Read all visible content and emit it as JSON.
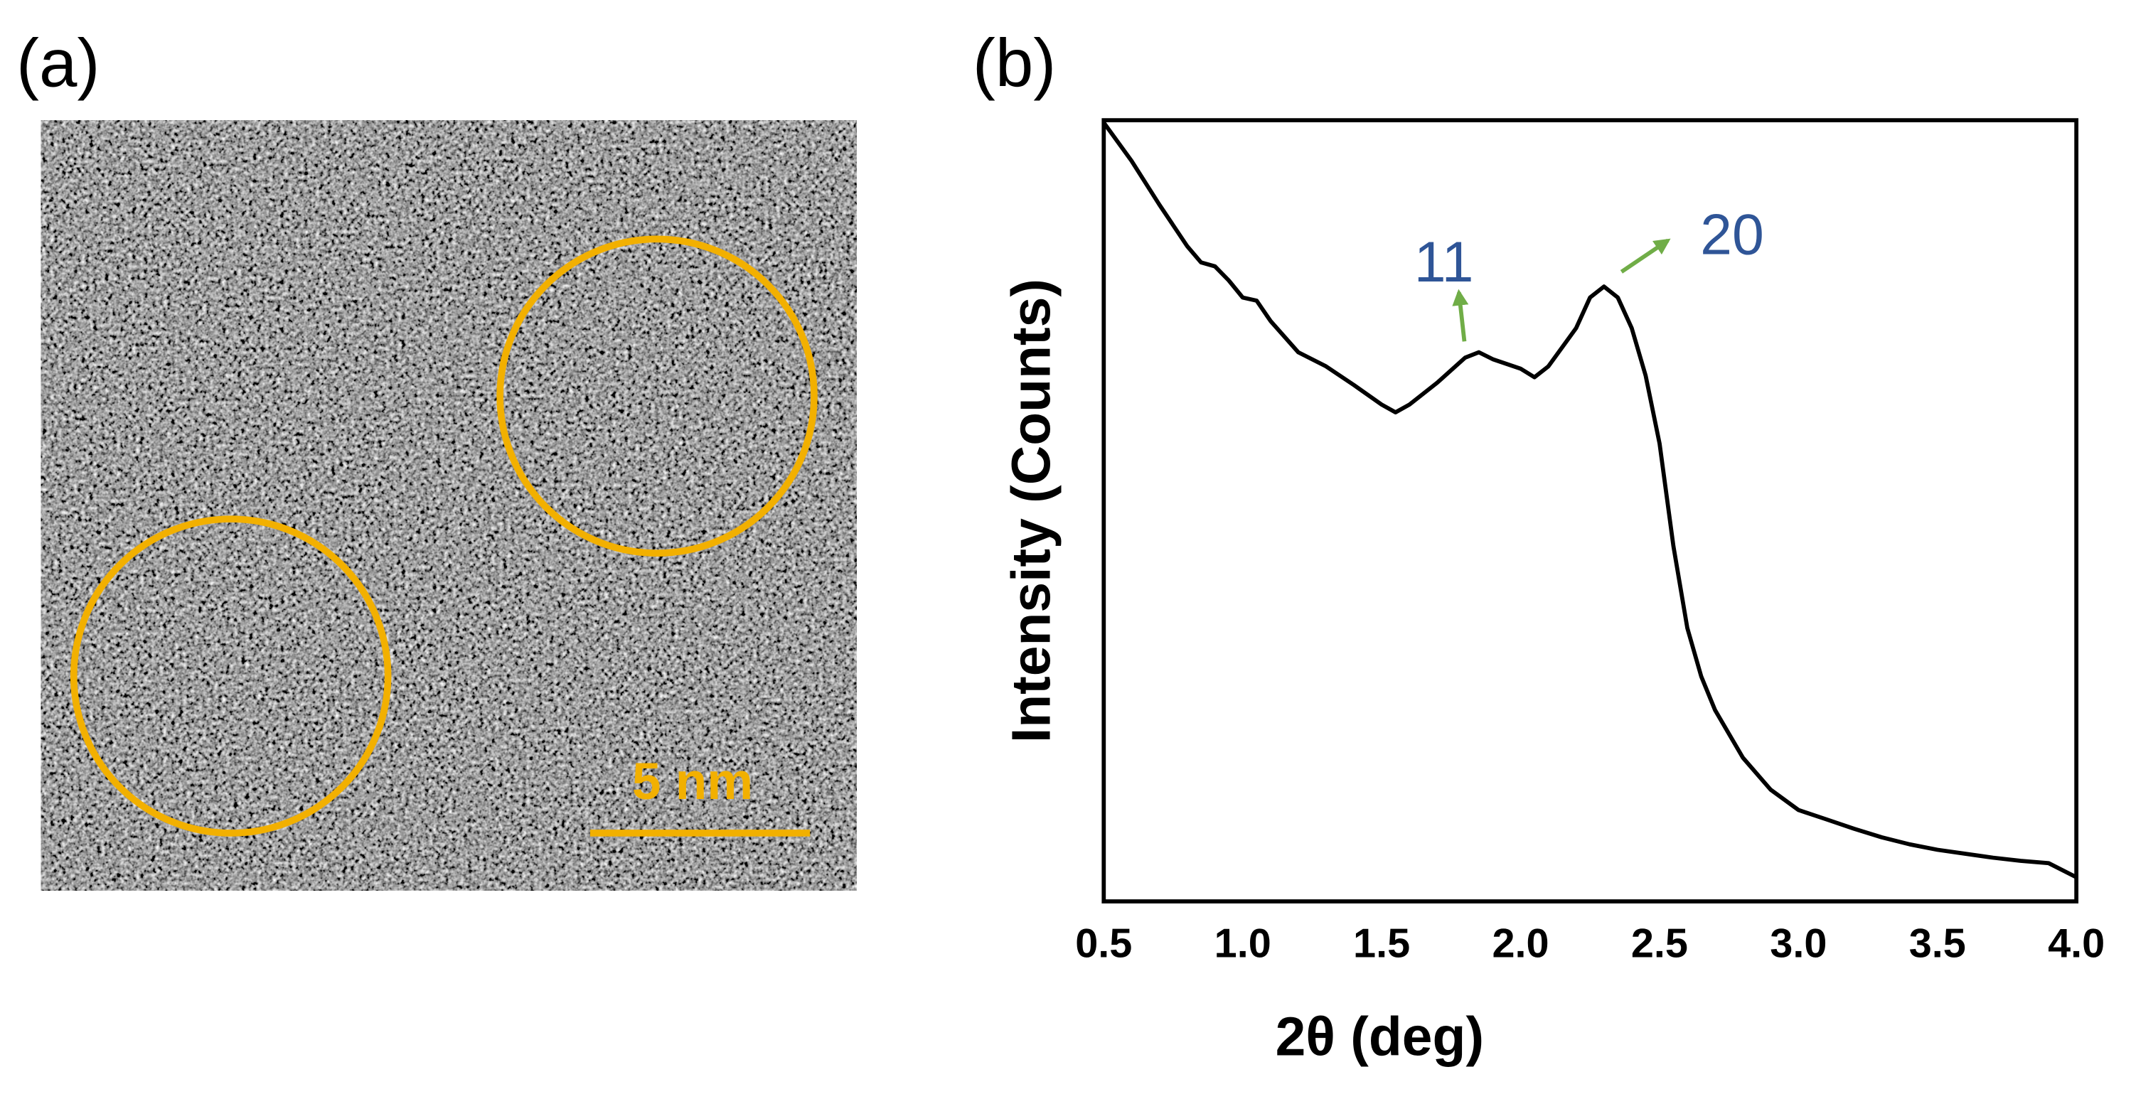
{
  "panel_a": {
    "label": "(a)",
    "scale_bar": "5 nm"
  },
  "chart_data": {
    "type": "line",
    "panel_label": "(b)",
    "x_label": "2θ  (deg)",
    "y_label": "Intensity (Counts)",
    "x": [
      0.5,
      0.6,
      0.7,
      0.8,
      0.85,
      0.9,
      0.95,
      1.0,
      1.05,
      1.1,
      1.2,
      1.3,
      1.4,
      1.5,
      1.55,
      1.6,
      1.7,
      1.8,
      1.85,
      1.9,
      2.0,
      2.05,
      2.1,
      2.2,
      2.25,
      2.3,
      2.35,
      2.4,
      2.45,
      2.5,
      2.55,
      2.6,
      2.65,
      2.7,
      2.8,
      2.9,
      3.0,
      3.1,
      3.2,
      3.3,
      3.4,
      3.5,
      3.6,
      3.7,
      3.8,
      3.9,
      4.0
    ],
    "values": [
      99.7,
      94.8,
      89.2,
      83.9,
      81.8,
      81.3,
      79.5,
      77.3,
      76.9,
      74.3,
      70.3,
      68.5,
      66.1,
      63.6,
      62.6,
      63.6,
      66.4,
      69.6,
      70.3,
      69.4,
      68.2,
      67.1,
      68.5,
      73.4,
      77.3,
      78.7,
      77.3,
      73.4,
      67.3,
      58.6,
      45.5,
      35.0,
      28.8,
      24.5,
      18.4,
      14.3,
      11.7,
      10.5,
      9.3,
      8.2,
      7.3,
      6.6,
      6.1,
      5.6,
      5.2,
      4.9,
      3.1
    ],
    "color": "#000000",
    "xlim": [
      0.5,
      4.0
    ],
    "xticks": [
      0.5,
      {
        "value": 1,
        "label": "1.0"
      },
      1.5,
      {
        "value": 2,
        "label": "2.0"
      },
      2.5,
      {
        "value": 3,
        "label": "3.0"
      },
      3.5,
      {
        "value": 4,
        "label": "4.0"
      }
    ],
    "ylim": [
      0,
      100
    ],
    "grid": false,
    "annotations": [
      "11",
      "20"
    ],
    "annotation_color": "#2f5597",
    "arrow_color": "#70ad47"
  }
}
